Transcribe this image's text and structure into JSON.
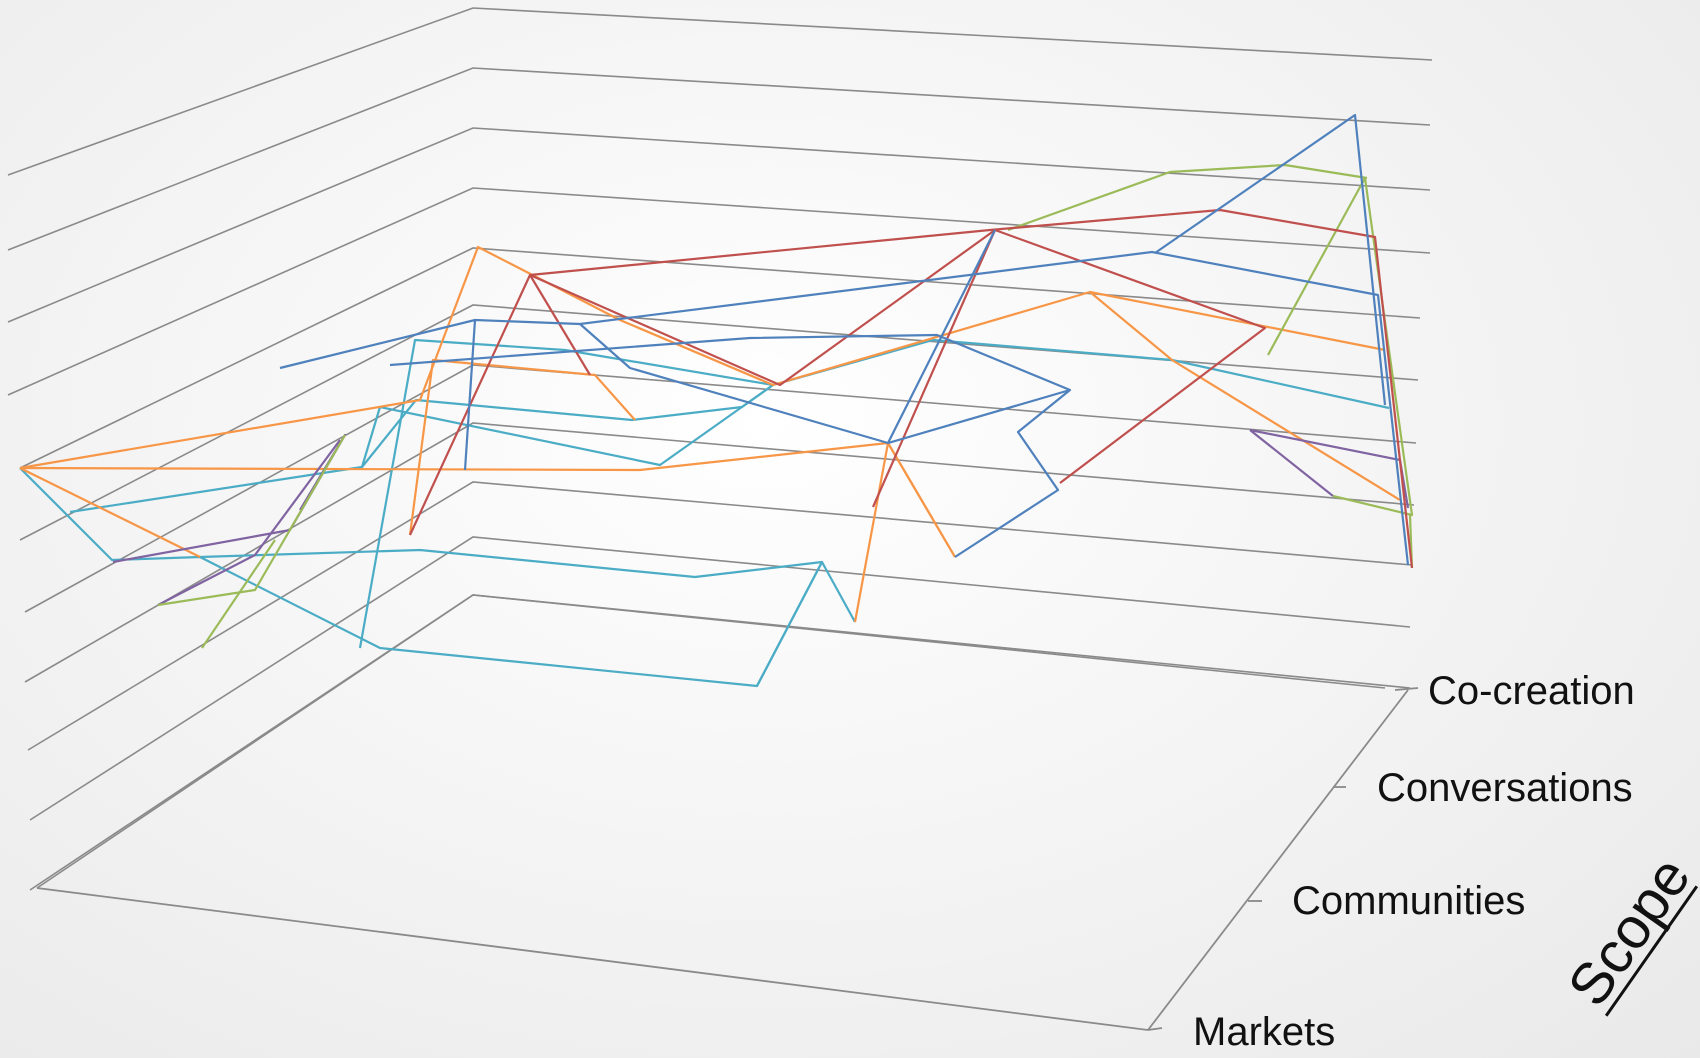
{
  "chart_data": {
    "type": "line",
    "subtype": "3d-surface-wireframe",
    "title": "",
    "depth_axis_title": "Scope",
    "depth_axis_title_underlined": true,
    "depth_categories": [
      "Markets",
      "Communities",
      "Conversations",
      "Co-creation"
    ],
    "gridline_count": 12,
    "grid": true,
    "series": [
      {
        "color": "#4bacc6"
      },
      {
        "color": "#f79646"
      },
      {
        "color": "#8064a2"
      },
      {
        "color": "#9bbb59"
      },
      {
        "color": "#c0504d"
      },
      {
        "color": "#4f81bd"
      }
    ],
    "colors": {
      "gridline": "#8a8a8a",
      "background": "#f1f1f1",
      "text": "#111111"
    }
  }
}
